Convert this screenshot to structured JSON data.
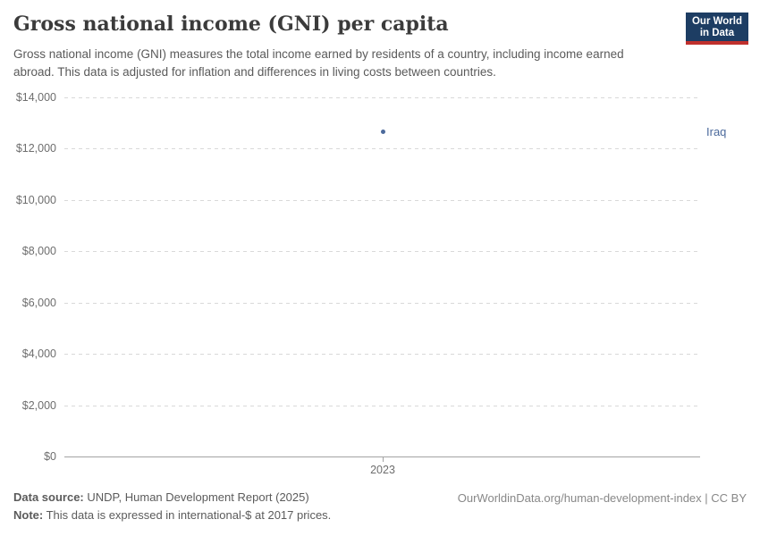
{
  "header": {
    "title": "Gross national income (GNI) per capita",
    "logo": {
      "line1": "Our World",
      "line2": "in Data",
      "bg_color": "#1d3d63",
      "accent_color": "#c0302d"
    }
  },
  "subtitle": "Gross national income (GNI) measures the total income earned by residents of a country, including income earned abroad. This data is adjusted for inflation and differences in living costs between countries.",
  "chart_data": {
    "type": "scatter",
    "title": "Gross national income (GNI) per capita",
    "x": [
      2023
    ],
    "x_tick_labels": [
      "2023"
    ],
    "series": [
      {
        "name": "Iraq",
        "values": [
          12650
        ],
        "color": "#4c6a9c"
      }
    ],
    "ylim": [
      0,
      14000
    ],
    "yticks": [
      {
        "value": 0,
        "label": "$0"
      },
      {
        "value": 2000,
        "label": "$2,000"
      },
      {
        "value": 4000,
        "label": "$4,000"
      },
      {
        "value": 6000,
        "label": "$6,000"
      },
      {
        "value": 8000,
        "label": "$8,000"
      },
      {
        "value": 10000,
        "label": "$10,000"
      },
      {
        "value": 12000,
        "label": "$12,000"
      },
      {
        "value": 14000,
        "label": "$14,000"
      }
    ],
    "ylabel": "",
    "xlabel": "",
    "grid": true,
    "legend_position": "entity-label-right"
  },
  "footer": {
    "source_label": "Data source:",
    "source_text": "UNDP, Human Development Report (2025)",
    "note_label": "Note:",
    "note_text": "This data is expressed in international-$ at 2017 prices.",
    "right_text": "OurWorldinData.org/human-development-index | CC BY"
  }
}
